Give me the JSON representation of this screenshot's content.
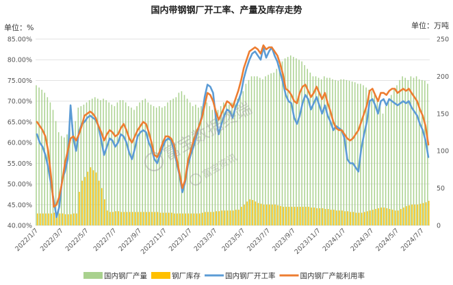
{
  "chart_data": {
    "type": "bar",
    "title": "国内带钢钢厂开工率、产量及库存走势",
    "left_unit": "单位：%",
    "right_unit": "单位：万吨",
    "y_left": {
      "min": 40,
      "max": 85,
      "step": 5,
      "tick_labels": [
        "40.00%",
        "45.00%",
        "50.00%",
        "55.00%",
        "60.00%",
        "65.00%",
        "70.00%",
        "75.00%",
        "80.00%",
        "85.00%"
      ]
    },
    "y_right": {
      "min": 0,
      "max": 250,
      "step": 50,
      "tick_labels": [
        "0",
        "50",
        "100",
        "150",
        "200",
        "250"
      ]
    },
    "x_tick_labels": [
      "2022/1/7",
      "2022/3/7",
      "2022/5/7",
      "2022/7/7",
      "2022/9/7",
      "2022/11/7",
      "2023/1/7",
      "2023/3/7",
      "2023/5/7",
      "2023/7/7",
      "2023/9/7",
      "2023/11/7",
      "2024/1/7",
      "2024/3/7",
      "2024/5/7",
      "2024/7/7"
    ],
    "weeks": 141,
    "note_gaps": "columns correspond to weekly data; series values are approximate readings",
    "series": [
      {
        "name": "国内钢厂产量",
        "kind": "bar",
        "axis": "right",
        "color": "#a9d18e",
        "values": [
          188,
          185,
          182,
          178,
          172,
          165,
          155,
          140,
          125,
          120,
          118,
          122,
          130,
          135,
          140,
          158,
          160,
          162,
          165,
          168,
          170,
          172,
          170,
          168,
          170,
          168,
          165,
          162,
          160,
          165,
          168,
          168,
          165,
          160,
          158,
          155,
          160,
          165,
          168,
          170,
          165,
          162,
          160,
          158,
          160,
          158,
          160,
          165,
          168,
          170,
          172,
          178,
          180,
          175,
          170,
          165,
          160,
          162,
          158,
          160,
          162,
          165,
          160,
          155,
          150,
          155,
          160,
          165,
          165,
          162,
          165,
          168,
          170,
          175,
          180,
          190,
          195,
          200,
          200,
          200,
          198,
          196,
          200,
          202,
          204,
          205,
          210,
          215,
          220,
          224,
          226,
          228,
          226,
          224,
          222,
          220,
          215,
          210,
          205,
          200,
          200,
          198,
          196,
          200,
          198,
          198,
          196,
          195,
          194,
          196,
          196,
          195,
          194,
          193,
          192,
          190,
          190,
          188,
          185,
          182,
          180,
          175,
          170,
          160,
          150,
          160,
          170,
          175,
          182,
          188,
          195,
          200,
          198,
          195,
          200,
          198,
          200,
          196,
          195,
          194,
          190
        ]
      },
      {
        "name": "钢厂库存",
        "kind": "bar",
        "axis": "right",
        "color": "#ffc000",
        "values": [
          16,
          16,
          16,
          16,
          16,
          16,
          17,
          16,
          16,
          16,
          15,
          15,
          15,
          16,
          16,
          45,
          60,
          65,
          72,
          78,
          74,
          71,
          60,
          50,
          35,
          20,
          18,
          18,
          19,
          19,
          18,
          18,
          18,
          18,
          18,
          18,
          18,
          18,
          18,
          18,
          18,
          18,
          18,
          18,
          17,
          17,
          17,
          17,
          17,
          16,
          16,
          16,
          16,
          16,
          16,
          16,
          16,
          16,
          16,
          17,
          18,
          18,
          18,
          18,
          19,
          19,
          20,
          20,
          20,
          20,
          20,
          21,
          21,
          25,
          28,
          32,
          35,
          34,
          32,
          30,
          29,
          28,
          28,
          28,
          28,
          28,
          27,
          26,
          25,
          25,
          25,
          25,
          25,
          25,
          25,
          25,
          25,
          25,
          24,
          24,
          23,
          23,
          23,
          22,
          22,
          21,
          21,
          20,
          20,
          20,
          19,
          19,
          18,
          18,
          17,
          17,
          17,
          18,
          19,
          20,
          21,
          22,
          23,
          24,
          24,
          23,
          22,
          21,
          20,
          20,
          22,
          24,
          26,
          27,
          28,
          28,
          28,
          29,
          30,
          31,
          33
        ]
      },
      {
        "name": "国内钢厂开工率",
        "kind": "line",
        "axis": "left",
        "color": "#5b9bd5",
        "values": [
          62.0,
          60.0,
          59.0,
          57.0,
          54.0,
          50.0,
          46.0,
          42.0,
          44.5,
          51.0,
          53.0,
          56.0,
          69.0,
          61.0,
          58.0,
          62.5,
          64.5,
          65.0,
          66.0,
          66.5,
          66.0,
          65.5,
          64.0,
          60.5,
          57.0,
          59.0,
          61.0,
          60.5,
          59.0,
          60.0,
          62.0,
          61.5,
          60.0,
          57.5,
          56.0,
          58.5,
          61.5,
          62.5,
          63.0,
          62.5,
          60.0,
          58.5,
          56.0,
          55.0,
          57.0,
          59.0,
          60.5,
          61.0,
          60.5,
          58.0,
          55.0,
          52.0,
          48.0,
          50.5,
          54.5,
          57.0,
          59.0,
          61.5,
          64.0,
          66.5,
          71.0,
          74.0,
          73.5,
          72.0,
          66.0,
          62.0,
          64.5,
          66.5,
          68.0,
          67.5,
          66.0,
          68.5,
          70.0,
          72.0,
          75.5,
          78.0,
          80.0,
          81.5,
          82.0,
          81.0,
          80.0,
          83.0,
          80.5,
          82.0,
          83.0,
          81.0,
          79.5,
          77.0,
          74.5,
          71.5,
          70.0,
          69.5,
          66.0,
          64.5,
          66.5,
          69.5,
          71.5,
          70.5,
          68.0,
          69.5,
          71.0,
          69.0,
          67.0,
          69.0,
          66.5,
          65.0,
          63.0,
          64.0,
          63.5,
          63.0,
          61.0,
          56.0,
          55.0,
          55.0,
          54.0,
          53.0,
          58.5,
          62.0,
          65.0,
          70.0,
          70.5,
          69.0,
          67.0,
          70.0,
          70.5,
          69.0,
          70.5,
          70.0,
          69.5,
          69.0,
          69.5,
          70.0,
          69.5,
          70.0,
          68.5,
          67.5,
          66.5,
          64.5,
          63.0,
          60.5,
          56.5
        ]
      },
      {
        "name": "国内钢厂产能利用率",
        "kind": "line",
        "axis": "left",
        "color": "#ed7d31",
        "values": [
          65.0,
          64.0,
          63.0,
          61.5,
          58.0,
          52.0,
          44.5,
          45.0,
          47.0,
          50.5,
          55.0,
          58.0,
          61.0,
          61.5,
          60.5,
          62.0,
          64.0,
          66.5,
          67.0,
          67.5,
          67.0,
          66.0,
          64.0,
          62.5,
          60.5,
          62.0,
          63.0,
          62.5,
          61.5,
          62.0,
          63.5,
          64.5,
          63.0,
          61.0,
          60.0,
          61.5,
          63.0,
          64.0,
          65.0,
          64.5,
          62.5,
          60.0,
          57.0,
          56.5,
          58.0,
          60.0,
          61.5,
          61.5,
          61.0,
          59.5,
          56.0,
          52.5,
          49.0,
          51.0,
          55.5,
          58.0,
          60.5,
          62.5,
          64.0,
          66.0,
          69.0,
          72.0,
          71.5,
          70.0,
          67.5,
          65.5,
          67.0,
          68.5,
          70.0,
          69.5,
          68.5,
          70.5,
          72.5,
          75.0,
          78.0,
          80.0,
          82.0,
          82.5,
          83.0,
          82.5,
          81.5,
          83.5,
          82.5,
          83.0,
          83.0,
          82.0,
          81.0,
          79.0,
          76.5,
          73.0,
          72.5,
          71.5,
          70.0,
          69.5,
          72.0,
          73.5,
          74.0,
          72.5,
          71.0,
          72.0,
          73.5,
          72.0,
          70.5,
          72.0,
          69.5,
          67.5,
          65.0,
          63.5,
          63.0,
          63.0,
          62.0,
          61.0,
          60.5,
          61.0,
          62.0,
          63.0,
          65.0,
          67.0,
          69.0,
          72.5,
          73.0,
          71.5,
          70.0,
          72.0,
          72.0,
          71.5,
          72.5,
          73.0,
          73.0,
          72.0,
          72.5,
          73.0,
          72.5,
          73.0,
          72.0,
          71.0,
          70.0,
          68.0,
          66.5,
          64.0,
          59.5
        ]
      }
    ],
    "legend": {
      "placement": "bottom"
    },
    "watermark": {
      "logo_text": "富宝数据终端",
      "small_text": "富宝资讯"
    }
  }
}
